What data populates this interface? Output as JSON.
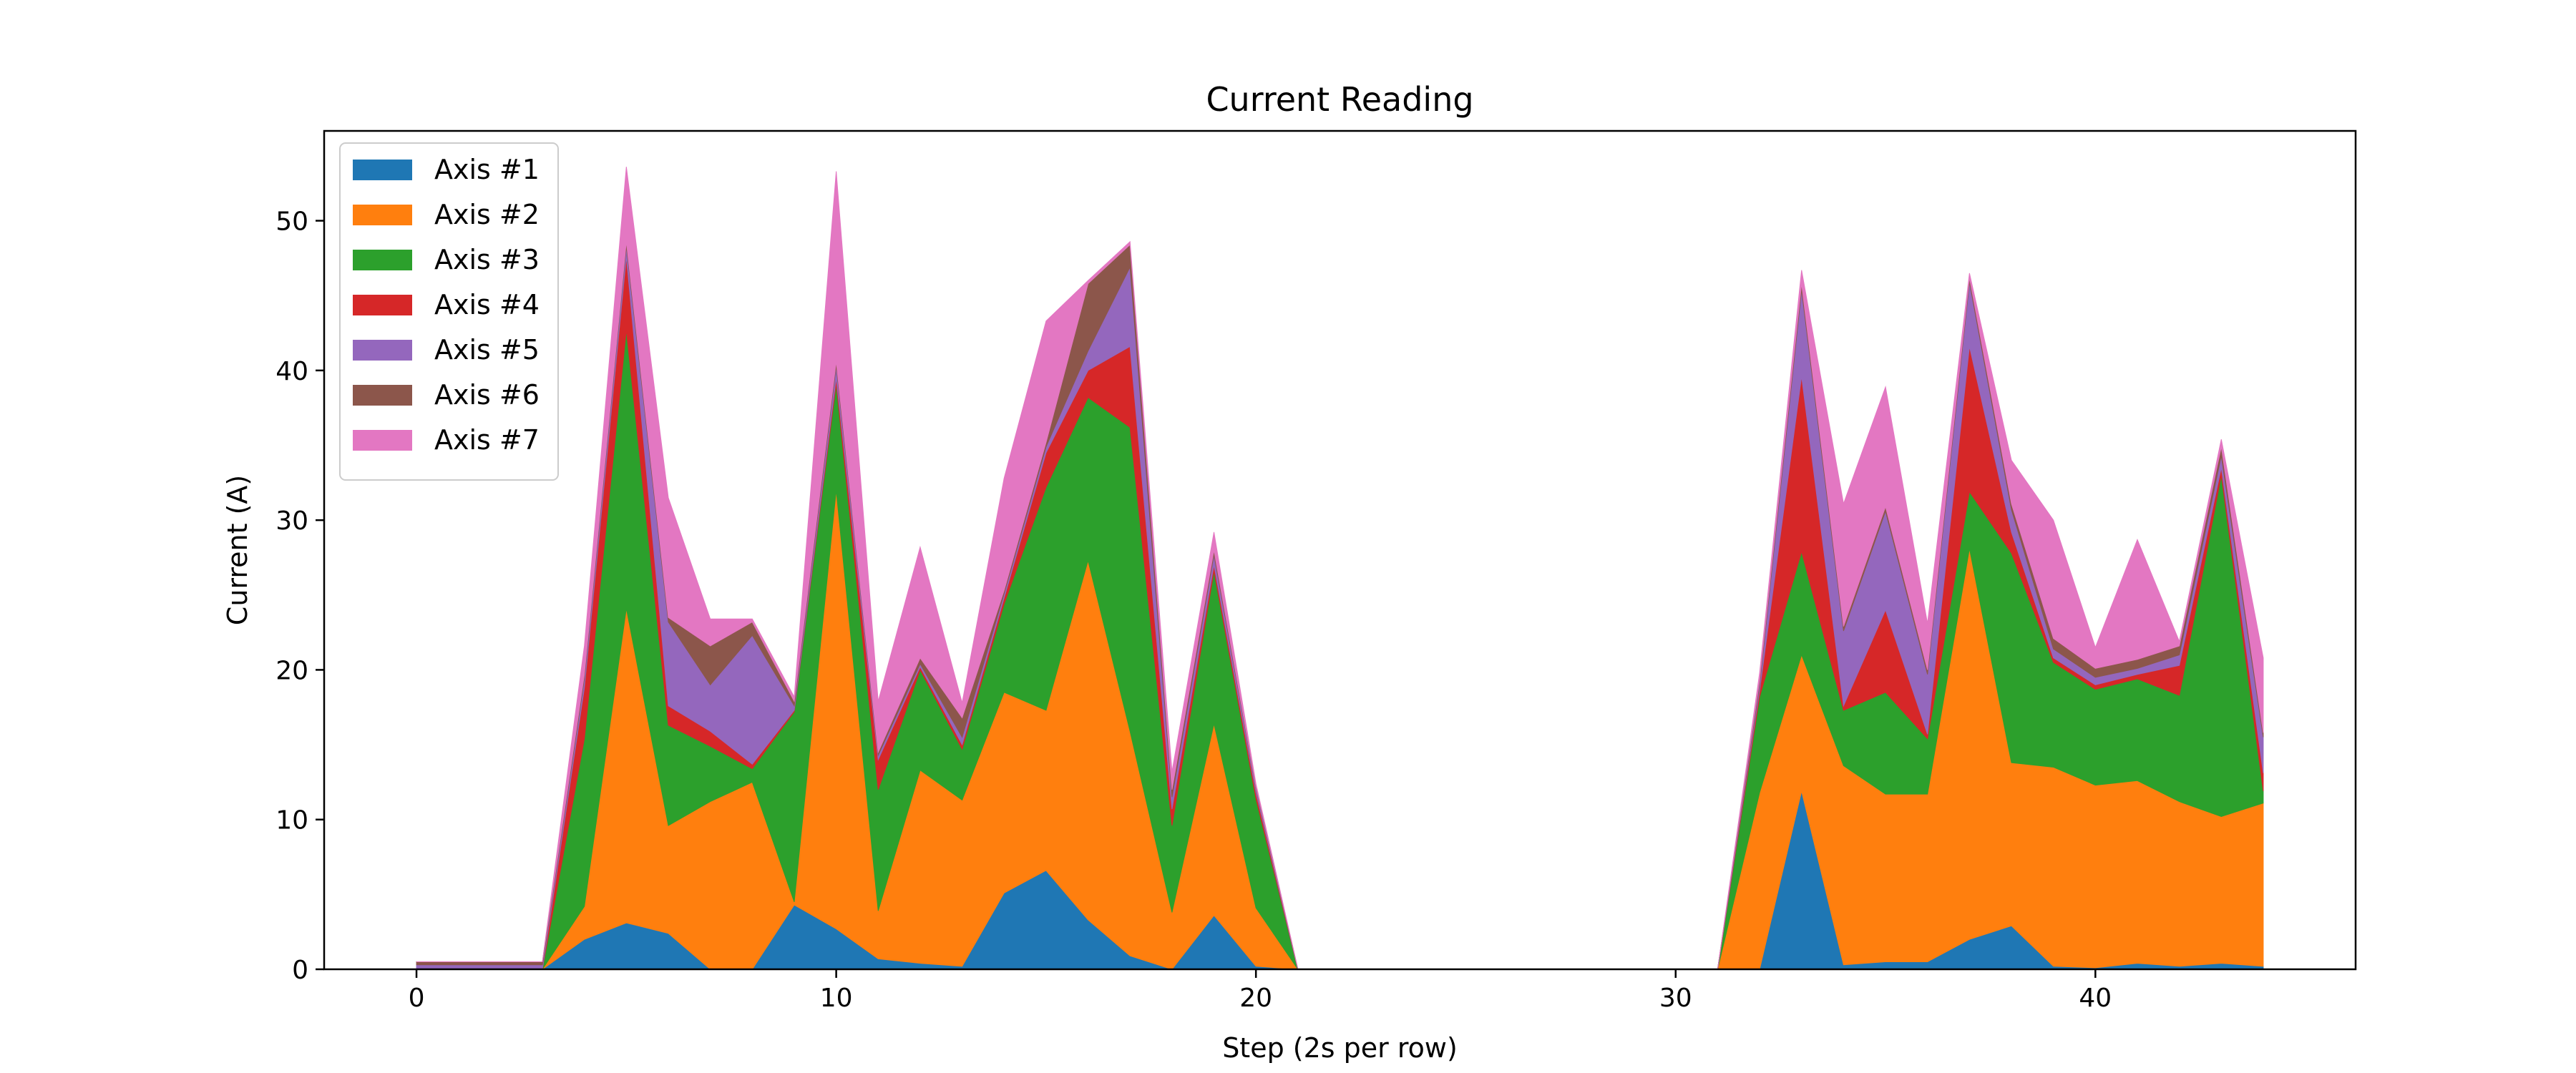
{
  "chart_data": {
    "type": "area",
    "stacked": true,
    "title": "Current Reading",
    "xlabel": "Step (2s per row)",
    "ylabel": "Current (A)",
    "xlim": [
      -2.2,
      46.2
    ],
    "ylim": [
      0,
      56
    ],
    "xticks": [
      0,
      10,
      20,
      30,
      40
    ],
    "yticks": [
      0,
      10,
      20,
      30,
      40,
      50
    ],
    "legend_position": "top-left",
    "grid": false,
    "x": [
      0,
      1,
      2,
      3,
      4,
      5,
      6,
      7,
      8,
      9,
      10,
      11,
      12,
      13,
      14,
      15,
      16,
      17,
      18,
      19,
      20,
      21,
      22,
      23,
      24,
      25,
      26,
      27,
      28,
      29,
      30,
      31,
      32,
      33,
      34,
      35,
      36,
      37,
      38,
      39,
      40,
      41,
      42,
      43,
      44
    ],
    "series": [
      {
        "name": "Axis #1",
        "color": "#1f77b4",
        "values": [
          0,
          0,
          0,
          0,
          2.0,
          3.1,
          2.4,
          0,
          0,
          4.3,
          2.7,
          0.7,
          0.4,
          0.2,
          5.1,
          6.6,
          3.3,
          0.9,
          0,
          3.6,
          0.2,
          0,
          0,
          0,
          0,
          0,
          0,
          0,
          0,
          0,
          0,
          0,
          0,
          11.9,
          0.3,
          0.5,
          0.5,
          2.0,
          2.9,
          0.2,
          0.1,
          0.4,
          0.2,
          0.4,
          0.2
        ]
      },
      {
        "name": "Axis #2",
        "color": "#ff7f0e",
        "values": [
          0,
          0,
          0,
          0,
          2.2,
          21.0,
          7.2,
          11.2,
          12.5,
          0.2,
          29.3,
          3.2,
          12.9,
          11.1,
          13.4,
          10.7,
          24.0,
          15.0,
          3.8,
          12.8,
          3.9,
          0,
          0,
          0,
          0,
          0,
          0,
          0,
          0,
          0,
          0,
          0,
          11.8,
          9.1,
          13.3,
          11.2,
          11.2,
          26.1,
          10.9,
          13.3,
          12.2,
          12.2,
          11.0,
          9.8,
          10.9
        ]
      },
      {
        "name": "Axis #3",
        "color": "#2ca02c",
        "values": [
          0,
          0,
          0,
          0,
          11.2,
          18.6,
          6.7,
          3.7,
          0.9,
          12.7,
          7.1,
          8.1,
          6.7,
          3.4,
          5.9,
          14.9,
          10.9,
          20.3,
          5.8,
          10.2,
          7.3,
          0,
          0,
          0,
          0,
          0,
          0,
          0,
          0,
          0,
          0,
          0,
          6.4,
          6.9,
          3.7,
          6.8,
          3.7,
          3.8,
          14.0,
          7.0,
          6.4,
          6.8,
          7.1,
          22.8,
          0.8
        ]
      },
      {
        "name": "Axis #4",
        "color": "#d62728",
        "values": [
          0,
          0,
          0,
          0,
          3.4,
          4.9,
          1.3,
          1.0,
          0.3,
          0.1,
          0.4,
          2.0,
          0.2,
          0.3,
          0.4,
          2.3,
          1.8,
          5.4,
          1.1,
          0.4,
          0.4,
          0,
          0,
          0,
          0,
          0,
          0,
          0,
          0,
          0,
          0,
          0,
          0.4,
          11.7,
          0.3,
          5.5,
          0.3,
          9.7,
          1.4,
          0.3,
          0.3,
          0.3,
          2.0,
          0.5,
          1.2
        ]
      },
      {
        "name": "Axis #5",
        "color": "#9467bd",
        "values": [
          0.3,
          0.3,
          0.3,
          0.3,
          0.6,
          0.7,
          5.6,
          3.1,
          8.6,
          0.3,
          0.8,
          0.3,
          0.2,
          0.5,
          0.3,
          0.4,
          1.3,
          5.3,
          0.8,
          0.7,
          0.3,
          0,
          0,
          0,
          0,
          0,
          0,
          0,
          0,
          0,
          0,
          0,
          0.4,
          5.8,
          5.0,
          6.6,
          4.0,
          4.3,
          1.5,
          0.6,
          0.5,
          0.4,
          0.7,
          0.8,
          2.4
        ]
      },
      {
        "name": "Axis #6",
        "color": "#8c564b",
        "values": [
          0.2,
          0.2,
          0.2,
          0.2,
          0.3,
          0.3,
          0.3,
          2.6,
          0.9,
          0.3,
          0.3,
          0.2,
          0.4,
          1.3,
          0.2,
          0.3,
          4.5,
          1.5,
          0.5,
          0.3,
          0.1,
          0,
          0,
          0,
          0,
          0,
          0,
          0,
          0,
          0,
          0,
          0,
          0.3,
          0.4,
          0.3,
          0.3,
          0.3,
          0.3,
          0.4,
          0.7,
          0.6,
          0.6,
          0.6,
          0.6,
          0.3
        ]
      },
      {
        "name": "Axis #7",
        "color": "#e377c2",
        "values": [
          0,
          0,
          0,
          0,
          1.9,
          5.0,
          8.0,
          1.8,
          0.2,
          0.3,
          12.7,
          3.4,
          7.4,
          1.0,
          7.5,
          8.1,
          0.2,
          0.2,
          1.2,
          1.2,
          0.2,
          0,
          0,
          0,
          0,
          0,
          0,
          0,
          0,
          0,
          0,
          0,
          0.5,
          0.9,
          8.2,
          8.0,
          3.1,
          0.3,
          2.9,
          7.9,
          1.4,
          8.0,
          0.3,
          0.5,
          5.0
        ]
      }
    ]
  }
}
